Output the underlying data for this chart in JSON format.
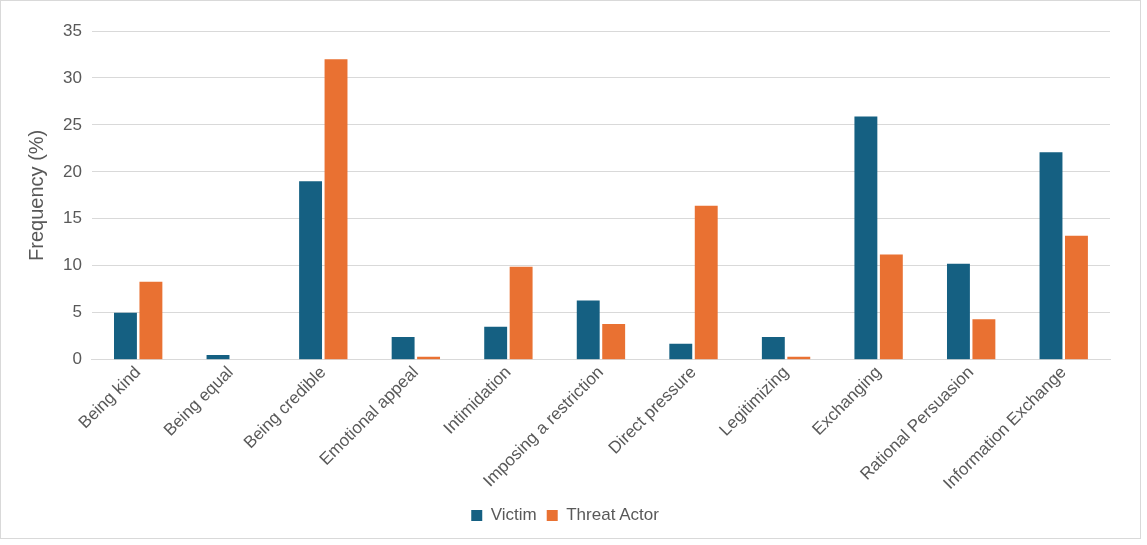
{
  "chart_data": {
    "type": "bar",
    "ylabel": "Frequency (%)",
    "categories": [
      "Being kind",
      "Being equal",
      "Being credible",
      "Emotional appeal",
      "Intimidation",
      "Imposing a restriction",
      "Direct pressure",
      "Legitimizing",
      "Exchanging",
      "Rational Persuasion",
      "Information Exchange"
    ],
    "series": [
      {
        "name": "Victim",
        "color": "#156082",
        "values": [
          5.0,
          0.5,
          19.0,
          2.4,
          3.5,
          6.3,
          1.7,
          2.4,
          25.9,
          10.2,
          22.1
        ]
      },
      {
        "name": "Threat Actor",
        "color": "#e97132",
        "values": [
          8.3,
          0,
          32.0,
          0.3,
          9.9,
          3.8,
          16.4,
          0.3,
          11.2,
          4.3,
          13.2
        ]
      }
    ],
    "ylim": [
      0,
      35
    ],
    "yticks": [
      0,
      5,
      10,
      15,
      20,
      25,
      30,
      35
    ],
    "grid": "y",
    "legend": "bottom"
  }
}
